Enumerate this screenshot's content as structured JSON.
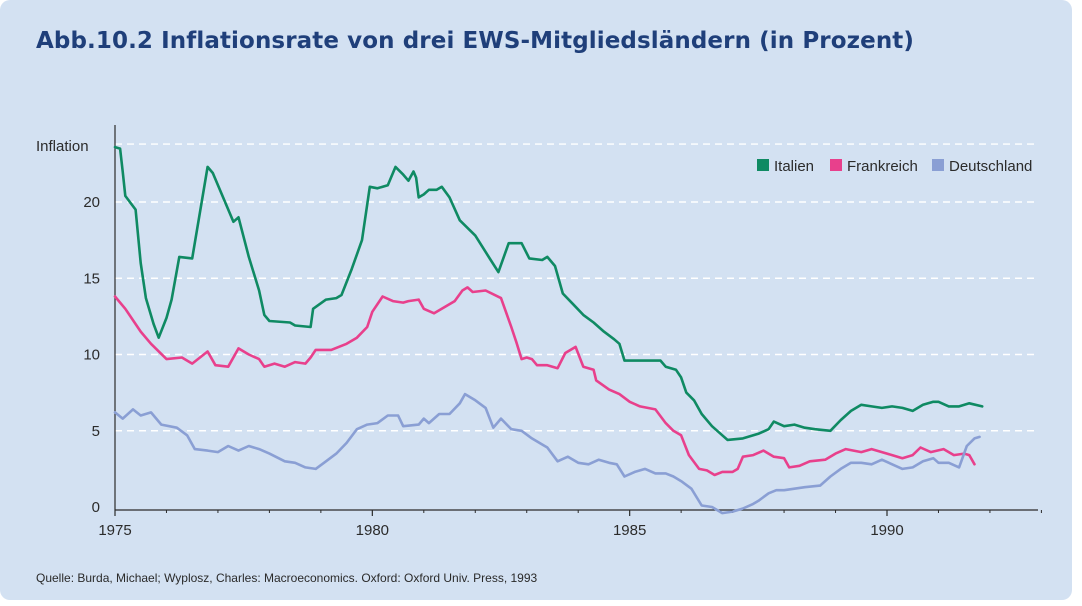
{
  "title": "Abb.10.2  Inflationsrate von drei EWS-Mitgliedsländern (in Prozent)",
  "source": "Quelle: Burda, Michael; Wyplosz, Charles: Macroeconomics. Oxford: Oxford Univ. Press, 1993",
  "chart_data": {
    "type": "line",
    "title": "Abb.10.2  Inflationsrate von drei EWS-Mitgliedsländern (in Prozent)",
    "ylabel": "Inflation",
    "xlabel": "",
    "xlim": [
      1975,
      1993.2
    ],
    "ylim": [
      -0.8,
      25
    ],
    "x_ticks": [
      1975,
      1980,
      1985,
      1990
    ],
    "x_tick_labels": [
      "1975",
      "1980",
      "1985",
      "1990"
    ],
    "y_ticks": [
      0,
      5,
      10,
      15,
      20
    ],
    "y_tick_labels": [
      "0",
      "5",
      "10",
      "15",
      "20"
    ],
    "grid": "horizontal dashed",
    "legend": "top-right",
    "series": [
      {
        "name": "Italien",
        "color": "#0f8a63",
        "points": [
          [
            1975.0,
            23.6
          ],
          [
            1975.1,
            23.5
          ],
          [
            1975.15,
            22.0
          ],
          [
            1975.2,
            20.4
          ],
          [
            1975.4,
            19.5
          ],
          [
            1975.5,
            16.0
          ],
          [
            1975.6,
            13.7
          ],
          [
            1975.75,
            12.0
          ],
          [
            1975.85,
            11.1
          ],
          [
            1976.0,
            12.4
          ],
          [
            1976.1,
            13.6
          ],
          [
            1976.25,
            16.4
          ],
          [
            1976.5,
            16.3
          ],
          [
            1976.8,
            22.3
          ],
          [
            1976.9,
            21.9
          ],
          [
            1977.1,
            20.3
          ],
          [
            1977.3,
            18.7
          ],
          [
            1977.4,
            19.0
          ],
          [
            1977.6,
            16.4
          ],
          [
            1977.8,
            14.2
          ],
          [
            1977.9,
            12.6
          ],
          [
            1978.0,
            12.2
          ],
          [
            1978.4,
            12.1
          ],
          [
            1978.5,
            11.9
          ],
          [
            1978.8,
            11.8
          ],
          [
            1978.85,
            13.0
          ],
          [
            1979.1,
            13.6
          ],
          [
            1979.3,
            13.7
          ],
          [
            1979.4,
            13.9
          ],
          [
            1979.6,
            15.6
          ],
          [
            1979.8,
            17.5
          ],
          [
            1979.95,
            21.0
          ],
          [
            1980.1,
            20.9
          ],
          [
            1980.3,
            21.1
          ],
          [
            1980.45,
            22.3
          ],
          [
            1980.6,
            21.8
          ],
          [
            1980.7,
            21.4
          ],
          [
            1980.8,
            22.0
          ],
          [
            1980.85,
            21.6
          ],
          [
            1980.9,
            20.3
          ],
          [
            1981.0,
            20.5
          ],
          [
            1981.1,
            20.8
          ],
          [
            1981.25,
            20.8
          ],
          [
            1981.35,
            21.0
          ],
          [
            1981.5,
            20.3
          ],
          [
            1981.7,
            18.8
          ],
          [
            1982.0,
            17.8
          ],
          [
            1982.3,
            16.2
          ],
          [
            1982.45,
            15.4
          ],
          [
            1982.65,
            17.3
          ],
          [
            1982.9,
            17.3
          ],
          [
            1983.05,
            16.3
          ],
          [
            1983.3,
            16.2
          ],
          [
            1983.4,
            16.4
          ],
          [
            1983.55,
            15.8
          ],
          [
            1983.7,
            14.0
          ],
          [
            1983.9,
            13.3
          ],
          [
            1984.1,
            12.6
          ],
          [
            1984.3,
            12.1
          ],
          [
            1984.5,
            11.5
          ],
          [
            1984.7,
            11.0
          ],
          [
            1984.8,
            10.7
          ],
          [
            1984.9,
            9.6
          ],
          [
            1985.6,
            9.6
          ],
          [
            1985.7,
            9.2
          ],
          [
            1985.9,
            9.0
          ],
          [
            1986.0,
            8.5
          ],
          [
            1986.1,
            7.5
          ],
          [
            1986.25,
            7.0
          ],
          [
            1986.4,
            6.1
          ],
          [
            1986.6,
            5.3
          ],
          [
            1986.8,
            4.7
          ],
          [
            1986.9,
            4.4
          ],
          [
            1987.2,
            4.5
          ],
          [
            1987.5,
            4.8
          ],
          [
            1987.7,
            5.1
          ],
          [
            1987.8,
            5.6
          ],
          [
            1988.0,
            5.3
          ],
          [
            1988.2,
            5.4
          ],
          [
            1988.4,
            5.2
          ],
          [
            1988.6,
            5.1
          ],
          [
            1988.9,
            5.0
          ],
          [
            1989.1,
            5.7
          ],
          [
            1989.3,
            6.3
          ],
          [
            1989.5,
            6.7
          ],
          [
            1989.7,
            6.6
          ],
          [
            1989.9,
            6.5
          ],
          [
            1990.1,
            6.6
          ],
          [
            1990.3,
            6.5
          ],
          [
            1990.5,
            6.3
          ],
          [
            1990.7,
            6.7
          ],
          [
            1990.9,
            6.9
          ],
          [
            1991.0,
            6.9
          ],
          [
            1991.2,
            6.6
          ],
          [
            1991.4,
            6.6
          ],
          [
            1991.6,
            6.8
          ],
          [
            1991.85,
            6.6
          ]
        ]
      },
      {
        "name": "Frankreich",
        "color": "#e8408c",
        "points": [
          [
            1975.0,
            13.8
          ],
          [
            1975.2,
            13.0
          ],
          [
            1975.5,
            11.5
          ],
          [
            1975.7,
            10.7
          ],
          [
            1976.0,
            9.7
          ],
          [
            1976.3,
            9.8
          ],
          [
            1976.5,
            9.4
          ],
          [
            1976.8,
            10.2
          ],
          [
            1976.95,
            9.3
          ],
          [
            1977.2,
            9.2
          ],
          [
            1977.4,
            10.4
          ],
          [
            1977.6,
            10.0
          ],
          [
            1977.8,
            9.7
          ],
          [
            1977.9,
            9.2
          ],
          [
            1978.1,
            9.4
          ],
          [
            1978.3,
            9.2
          ],
          [
            1978.5,
            9.5
          ],
          [
            1978.7,
            9.4
          ],
          [
            1978.8,
            9.8
          ],
          [
            1978.9,
            10.3
          ],
          [
            1979.2,
            10.3
          ],
          [
            1979.5,
            10.7
          ],
          [
            1979.7,
            11.1
          ],
          [
            1979.9,
            11.8
          ],
          [
            1980.0,
            12.8
          ],
          [
            1980.2,
            13.8
          ],
          [
            1980.4,
            13.5
          ],
          [
            1980.6,
            13.4
          ],
          [
            1980.7,
            13.5
          ],
          [
            1980.9,
            13.6
          ],
          [
            1981.0,
            13.0
          ],
          [
            1981.2,
            12.7
          ],
          [
            1981.3,
            12.9
          ],
          [
            1981.6,
            13.5
          ],
          [
            1981.75,
            14.2
          ],
          [
            1981.85,
            14.4
          ],
          [
            1981.95,
            14.1
          ],
          [
            1982.2,
            14.2
          ],
          [
            1982.5,
            13.7
          ],
          [
            1982.7,
            11.8
          ],
          [
            1982.8,
            10.8
          ],
          [
            1982.9,
            9.7
          ],
          [
            1983.0,
            9.8
          ],
          [
            1983.1,
            9.7
          ],
          [
            1983.2,
            9.3
          ],
          [
            1983.4,
            9.3
          ],
          [
            1983.6,
            9.1
          ],
          [
            1983.75,
            10.1
          ],
          [
            1983.95,
            10.5
          ],
          [
            1984.1,
            9.2
          ],
          [
            1984.3,
            9.0
          ],
          [
            1984.35,
            8.3
          ],
          [
            1984.6,
            7.7
          ],
          [
            1984.8,
            7.4
          ],
          [
            1985.0,
            6.9
          ],
          [
            1985.2,
            6.6
          ],
          [
            1985.35,
            6.5
          ],
          [
            1985.5,
            6.4
          ],
          [
            1985.7,
            5.5
          ],
          [
            1985.85,
            5.0
          ],
          [
            1986.0,
            4.7
          ],
          [
            1986.15,
            3.4
          ],
          [
            1986.35,
            2.5
          ],
          [
            1986.5,
            2.4
          ],
          [
            1986.65,
            2.1
          ],
          [
            1986.8,
            2.3
          ],
          [
            1987.0,
            2.3
          ],
          [
            1987.1,
            2.5
          ],
          [
            1987.2,
            3.3
          ],
          [
            1987.4,
            3.4
          ],
          [
            1987.6,
            3.7
          ],
          [
            1987.8,
            3.3
          ],
          [
            1988.0,
            3.2
          ],
          [
            1988.1,
            2.6
          ],
          [
            1988.3,
            2.7
          ],
          [
            1988.5,
            3.0
          ],
          [
            1988.8,
            3.1
          ],
          [
            1989.0,
            3.5
          ],
          [
            1989.2,
            3.8
          ],
          [
            1989.5,
            3.6
          ],
          [
            1989.7,
            3.8
          ],
          [
            1989.9,
            3.6
          ],
          [
            1990.1,
            3.4
          ],
          [
            1990.3,
            3.2
          ],
          [
            1990.5,
            3.4
          ],
          [
            1990.65,
            3.9
          ],
          [
            1990.85,
            3.6
          ],
          [
            1991.1,
            3.8
          ],
          [
            1991.3,
            3.4
          ],
          [
            1991.5,
            3.5
          ],
          [
            1991.6,
            3.4
          ],
          [
            1991.7,
            2.8
          ]
        ]
      },
      {
        "name": "Deutschland",
        "color": "#8a9fd4",
        "points": [
          [
            1975.0,
            6.2
          ],
          [
            1975.15,
            5.8
          ],
          [
            1975.35,
            6.4
          ],
          [
            1975.5,
            6.0
          ],
          [
            1975.7,
            6.2
          ],
          [
            1975.9,
            5.4
          ],
          [
            1976.2,
            5.2
          ],
          [
            1976.4,
            4.7
          ],
          [
            1976.55,
            3.8
          ],
          [
            1976.8,
            3.7
          ],
          [
            1977.0,
            3.6
          ],
          [
            1977.2,
            4.0
          ],
          [
            1977.4,
            3.7
          ],
          [
            1977.6,
            4.0
          ],
          [
            1977.8,
            3.8
          ],
          [
            1978.0,
            3.5
          ],
          [
            1978.3,
            3.0
          ],
          [
            1978.5,
            2.9
          ],
          [
            1978.7,
            2.6
          ],
          [
            1978.9,
            2.5
          ],
          [
            1979.1,
            3.0
          ],
          [
            1979.3,
            3.5
          ],
          [
            1979.5,
            4.2
          ],
          [
            1979.7,
            5.1
          ],
          [
            1979.9,
            5.4
          ],
          [
            1980.1,
            5.5
          ],
          [
            1980.3,
            6.0
          ],
          [
            1980.5,
            6.0
          ],
          [
            1980.6,
            5.3
          ],
          [
            1980.9,
            5.4
          ],
          [
            1981.0,
            5.8
          ],
          [
            1981.1,
            5.5
          ],
          [
            1981.3,
            6.1
          ],
          [
            1981.5,
            6.1
          ],
          [
            1981.7,
            6.8
          ],
          [
            1981.8,
            7.4
          ],
          [
            1982.0,
            7.0
          ],
          [
            1982.2,
            6.5
          ],
          [
            1982.35,
            5.2
          ],
          [
            1982.5,
            5.8
          ],
          [
            1982.7,
            5.1
          ],
          [
            1982.9,
            5.0
          ],
          [
            1983.1,
            4.5
          ],
          [
            1983.3,
            4.1
          ],
          [
            1983.4,
            3.9
          ],
          [
            1983.6,
            3.0
          ],
          [
            1983.8,
            3.3
          ],
          [
            1984.0,
            2.9
          ],
          [
            1984.2,
            2.8
          ],
          [
            1984.4,
            3.1
          ],
          [
            1984.6,
            2.9
          ],
          [
            1984.75,
            2.8
          ],
          [
            1984.9,
            2.0
          ],
          [
            1985.1,
            2.3
          ],
          [
            1985.3,
            2.5
          ],
          [
            1985.5,
            2.2
          ],
          [
            1985.7,
            2.2
          ],
          [
            1985.85,
            2.0
          ],
          [
            1986.0,
            1.7
          ],
          [
            1986.2,
            1.2
          ],
          [
            1986.4,
            0.1
          ],
          [
            1986.6,
            0.0
          ],
          [
            1986.8,
            -0.4
          ],
          [
            1987.0,
            -0.3
          ],
          [
            1987.2,
            -0.1
          ],
          [
            1987.4,
            0.2
          ],
          [
            1987.5,
            0.4
          ],
          [
            1987.7,
            0.9
          ],
          [
            1987.85,
            1.1
          ],
          [
            1988.0,
            1.1
          ],
          [
            1988.4,
            1.3
          ],
          [
            1988.7,
            1.4
          ],
          [
            1988.9,
            2.0
          ],
          [
            1989.1,
            2.5
          ],
          [
            1989.3,
            2.9
          ],
          [
            1989.5,
            2.9
          ],
          [
            1989.7,
            2.8
          ],
          [
            1989.9,
            3.1
          ],
          [
            1990.1,
            2.8
          ],
          [
            1990.3,
            2.5
          ],
          [
            1990.5,
            2.6
          ],
          [
            1990.7,
            3.0
          ],
          [
            1990.9,
            3.2
          ],
          [
            1991.0,
            2.9
          ],
          [
            1991.2,
            2.9
          ],
          [
            1991.4,
            2.6
          ],
          [
            1991.55,
            4.0
          ],
          [
            1991.7,
            4.5
          ],
          [
            1991.8,
            4.6
          ]
        ]
      }
    ]
  }
}
